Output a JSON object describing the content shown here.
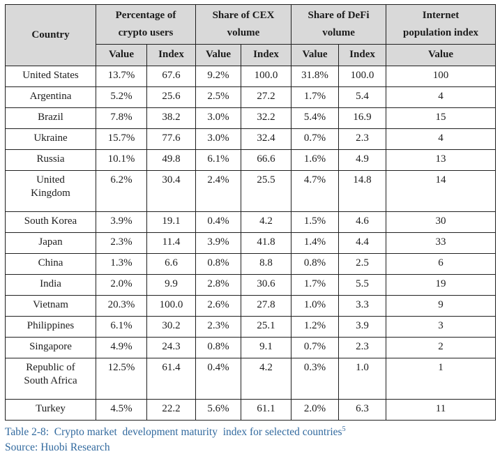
{
  "table": {
    "header": {
      "country": "Country",
      "groups": [
        {
          "id": "crypto-users",
          "label": "Percentage of\ncrypto users",
          "span": 2
        },
        {
          "id": "cex-volume",
          "label": "Share of CEX\nvolume",
          "span": 2
        },
        {
          "id": "defi-volume",
          "label": "Share of DeFi\nvolume",
          "span": 2
        },
        {
          "id": "internet-population",
          "label": "Internet\npopulation index",
          "span": 1
        }
      ],
      "subheaders": [
        "Value",
        "Index",
        "Value",
        "Index",
        "Value",
        "Index",
        "Value"
      ]
    },
    "rows": [
      {
        "country": "United States",
        "tall": false,
        "values": [
          "13.7%",
          "67.6",
          "9.2%",
          "100.0",
          "31.8%",
          "100.0",
          "100"
        ]
      },
      {
        "country": "Argentina",
        "tall": false,
        "values": [
          "5.2%",
          "25.6",
          "2.5%",
          "27.2",
          "1.7%",
          "5.4",
          "4"
        ]
      },
      {
        "country": "Brazil",
        "tall": false,
        "values": [
          "7.8%",
          "38.2",
          "3.0%",
          "32.2",
          "5.4%",
          "16.9",
          "15"
        ]
      },
      {
        "country": "Ukraine",
        "tall": false,
        "values": [
          "15.7%",
          "77.6",
          "3.0%",
          "32.4",
          "0.7%",
          "2.3",
          "4"
        ]
      },
      {
        "country": "Russia",
        "tall": false,
        "values": [
          "10.1%",
          "49.8",
          "6.1%",
          "66.6",
          "1.6%",
          "4.9",
          "13"
        ]
      },
      {
        "country": "United\nKingdom",
        "tall": true,
        "values": [
          "6.2%",
          "30.4",
          "2.4%",
          "25.5",
          "4.7%",
          "14.8",
          "14"
        ]
      },
      {
        "country": "South Korea",
        "tall": false,
        "values": [
          "3.9%",
          "19.1",
          "0.4%",
          "4.2",
          "1.5%",
          "4.6",
          "30"
        ]
      },
      {
        "country": "Japan",
        "tall": false,
        "values": [
          "2.3%",
          "11.4",
          "3.9%",
          "41.8",
          "1.4%",
          "4.4",
          "33"
        ]
      },
      {
        "country": "China",
        "tall": false,
        "values": [
          "1.3%",
          "6.6",
          "0.8%",
          "8.8",
          "0.8%",
          "2.5",
          "6"
        ]
      },
      {
        "country": "India",
        "tall": false,
        "values": [
          "2.0%",
          "9.9",
          "2.8%",
          "30.6",
          "1.7%",
          "5.5",
          "19"
        ]
      },
      {
        "country": "Vietnam",
        "tall": false,
        "values": [
          "20.3%",
          "100.0",
          "2.6%",
          "27.8",
          "1.0%",
          "3.3",
          "9"
        ]
      },
      {
        "country": "Philippines",
        "tall": false,
        "values": [
          "6.1%",
          "30.2",
          "2.3%",
          "25.1",
          "1.2%",
          "3.9",
          "3"
        ]
      },
      {
        "country": "Singapore",
        "tall": false,
        "values": [
          "4.9%",
          "24.3",
          "0.8%",
          "9.1",
          "0.7%",
          "2.3",
          "2"
        ]
      },
      {
        "country": "Republic of\nSouth Africa",
        "tall": true,
        "values": [
          "12.5%",
          "61.4",
          "0.4%",
          "4.2",
          "0.3%",
          "1.0",
          "1"
        ]
      },
      {
        "country": "Turkey",
        "tall": false,
        "values": [
          "4.5%",
          "22.2",
          "5.6%",
          "61.1",
          "2.0%",
          "6.3",
          "11"
        ]
      }
    ]
  },
  "caption": {
    "text": "Table 2-8:  Crypto market  development maturity  index for selected countries",
    "footnote_mark": "5"
  },
  "source": "Source: Huobi Research",
  "colors": {
    "header_bg": "#d9d9d9",
    "border": "#1f1f1f",
    "caption_text": "#31699e"
  }
}
